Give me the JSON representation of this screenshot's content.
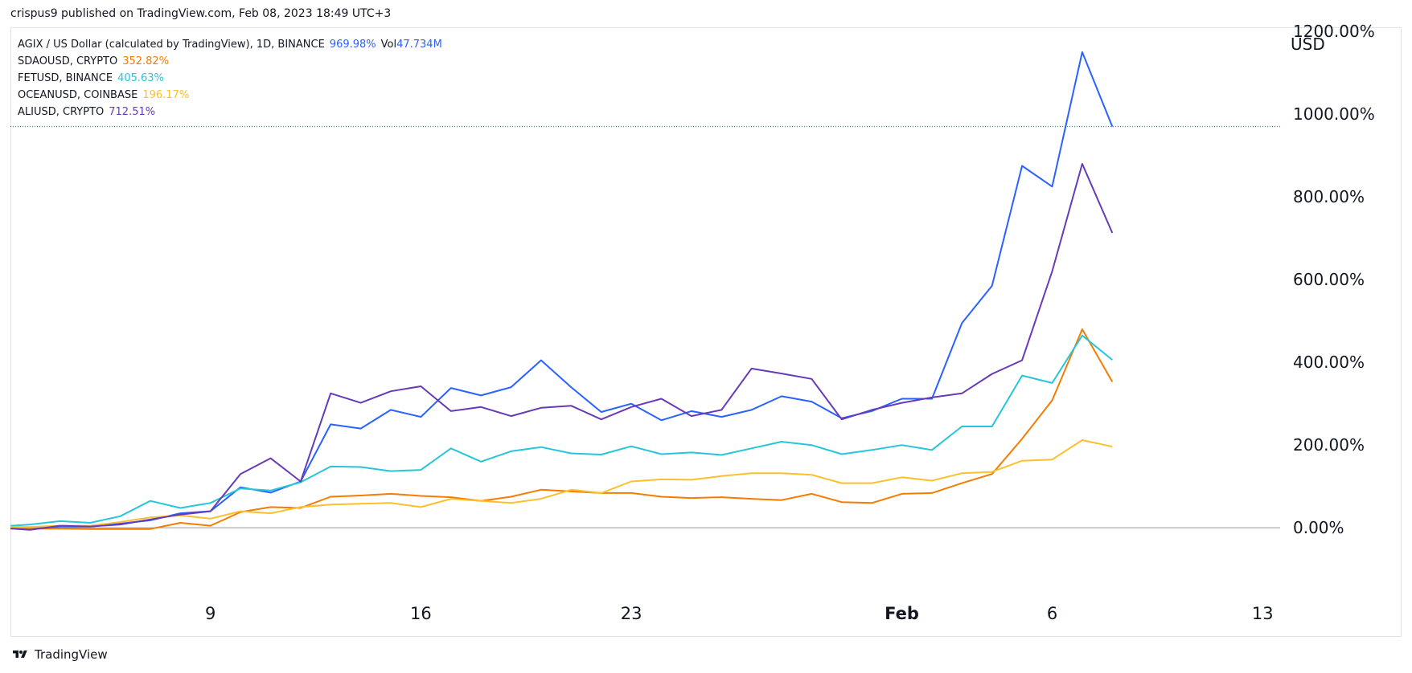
{
  "header": {
    "published": "crispus9 published on TradingView.com, Feb 08, 2023 18:49 UTC+3"
  },
  "legend": [
    {
      "label": "AGIX / US Dollar (calculated by TradingView), 1D, BINANCE",
      "value": "969.98%",
      "color": "#2962ff",
      "vol_label": "Vol",
      "vol_value": "47.734M"
    },
    {
      "label": "SDAOUSD, CRYPTO",
      "value": "352.82%",
      "color": "#f57c00"
    },
    {
      "label": "FETUSD, BINANCE",
      "value": "405.63%",
      "color": "#26c6da"
    },
    {
      "label": "OCEANUSD, COINBASE",
      "value": "196.17%",
      "color": "#fbc02d"
    },
    {
      "label": "ALIUSD, CRYPTO",
      "value": "712.51%",
      "color": "#673ab7"
    }
  ],
  "footer": {
    "brand": "TradingView"
  },
  "chart_data": {
    "type": "line",
    "y_unit": "USD",
    "ylim": [
      -155,
      1210
    ],
    "y_ticks": [
      0,
      200,
      400,
      600,
      800,
      1000,
      1200
    ],
    "y_tick_labels": [
      "0.00%",
      "200.00%",
      "400.00%",
      "600.00%",
      "800.00%",
      "1000.00%",
      "1200.00%"
    ],
    "reference_value": 970,
    "x_ticks": [
      {
        "day": 9,
        "label": "9",
        "bold": false
      },
      {
        "day": 16,
        "label": "16",
        "bold": false
      },
      {
        "day": 23,
        "label": "23",
        "bold": false
      },
      {
        "day": 32,
        "label": "Feb",
        "bold": true
      },
      {
        "day": 37,
        "label": "6",
        "bold": false
      },
      {
        "day": 44,
        "label": "13",
        "bold": false
      }
    ],
    "x_day_range": [
      2.3,
      44.5
    ],
    "x_days": [
      2,
      3,
      4,
      5,
      6,
      7,
      8,
      9,
      10,
      11,
      12,
      13,
      14,
      15,
      16,
      17,
      18,
      19,
      20,
      21,
      22,
      23,
      24,
      25,
      26,
      27,
      28,
      29,
      30,
      31,
      32,
      33,
      34,
      35,
      36,
      37,
      38,
      39
    ],
    "series": [
      {
        "name": "AGIX / US Dollar (calculated by TradingView), 1D, BINANCE",
        "color": "#2962ff",
        "values": [
          0,
          -3,
          3,
          3,
          10,
          18,
          35,
          40,
          98,
          85,
          112,
          250,
          240,
          285,
          268,
          338,
          320,
          340,
          405,
          340,
          280,
          300,
          260,
          282,
          268,
          285,
          318,
          305,
          265,
          282,
          312,
          312,
          495,
          585,
          875,
          825,
          1150,
          970
        ]
      },
      {
        "name": "SDAOUSD, CRYPTO",
        "color": "#f57c00",
        "values": [
          0,
          -2,
          -2,
          -3,
          -3,
          -3,
          12,
          5,
          38,
          50,
          48,
          75,
          78,
          82,
          77,
          74,
          65,
          75,
          92,
          88,
          84,
          84,
          75,
          72,
          74,
          70,
          67,
          82,
          62,
          60,
          82,
          84,
          108,
          130,
          215,
          308,
          480,
          353
        ]
      },
      {
        "name": "FETUSD, BINANCE",
        "color": "#26c6da",
        "values": [
          3,
          8,
          16,
          12,
          28,
          65,
          48,
          60,
          95,
          90,
          110,
          148,
          147,
          137,
          140,
          192,
          160,
          185,
          195,
          180,
          177,
          197,
          178,
          182,
          176,
          192,
          208,
          200,
          178,
          188,
          200,
          188,
          245,
          245,
          368,
          350,
          465,
          406
        ]
      },
      {
        "name": "OCEANUSD, COINBASE",
        "color": "#fbc02d",
        "values": [
          2,
          2,
          5,
          5,
          14,
          25,
          30,
          22,
          40,
          35,
          50,
          56,
          58,
          60,
          50,
          70,
          65,
          60,
          70,
          92,
          84,
          112,
          117,
          116,
          125,
          132,
          132,
          128,
          108,
          108,
          122,
          114,
          132,
          135,
          162,
          165,
          212,
          196
        ]
      },
      {
        "name": "ALIUSD, CRYPTO",
        "color": "#673ab7",
        "values": [
          0,
          -5,
          5,
          3,
          8,
          20,
          32,
          40,
          130,
          168,
          112,
          325,
          302,
          330,
          342,
          282,
          292,
          270,
          290,
          295,
          262,
          292,
          312,
          270,
          285,
          385,
          373,
          360,
          262,
          285,
          302,
          315,
          325,
          372,
          405,
          620,
          880,
          713
        ]
      }
    ]
  }
}
